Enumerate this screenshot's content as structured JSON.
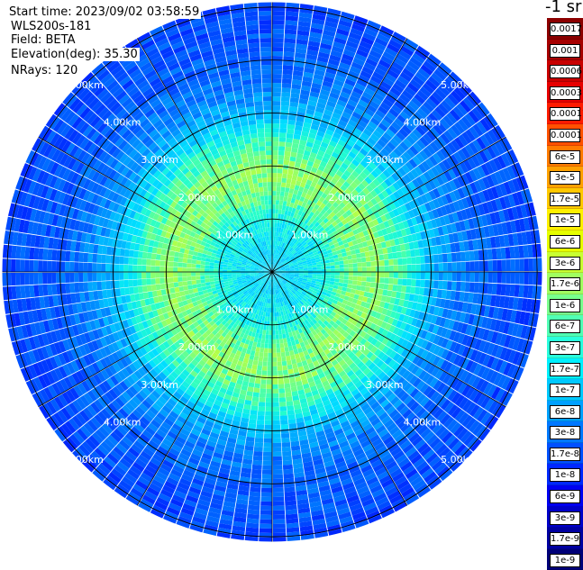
{
  "info": {
    "start_time": "Start time: 2023/09/02 03:58:59",
    "instrument": "WLS200s-181",
    "field": "Field: BETA",
    "elevation": "Elevation(deg): 35.30",
    "nrays": "NRays: 120"
  },
  "units": "-1 sr",
  "colorbar": {
    "labels": [
      "0.0017",
      "0.001",
      "0.0006",
      "0.0003",
      "0.00017",
      "0.0001",
      "6e-5",
      "3e-5",
      "1.7e-5",
      "1e-5",
      "6e-6",
      "3e-6",
      "1.7e-6",
      "1e-6",
      "6e-7",
      "3e-7",
      "1.7e-7",
      "1e-7",
      "6e-8",
      "3e-8",
      "1.7e-8",
      "1e-8",
      "6e-9",
      "3e-9",
      "1.7e-9",
      "1e-9"
    ],
    "colors": [
      "#8b0000",
      "#a50000",
      "#c80000",
      "#e60000",
      "#ff1a00",
      "#ff5000",
      "#ff7a00",
      "#ffa000",
      "#ffc800",
      "#fff000",
      "#e6ff00",
      "#c8ff32",
      "#a0ff60",
      "#78ff8c",
      "#50ffb4",
      "#28ffdc",
      "#00f0ff",
      "#00c8ff",
      "#00a0ff",
      "#0078ff",
      "#0050ff",
      "#0028ff",
      "#0000f0",
      "#0000c8",
      "#0000a0",
      "#000078"
    ]
  },
  "chart_data": {
    "type": "heatmap",
    "projection": "polar PPI",
    "field": "BETA",
    "rays": 120,
    "elevation_deg": 35.3,
    "range_rings_km": [
      1.0,
      2.0,
      3.0,
      4.0,
      5.0
    ],
    "ring_labels": [
      "1.00km",
      "2.00km",
      "3.00km",
      "4.00km",
      "5.00km"
    ],
    "radial_lines_deg": [
      0,
      30,
      60,
      90,
      120,
      150,
      180,
      210,
      240,
      270,
      300,
      330
    ],
    "max_range_km": 5.1,
    "radial_profile_log10": [
      {
        "range_km": 0.0,
        "value": -7.3
      },
      {
        "range_km": 0.5,
        "value": -7.2
      },
      {
        "range_km": 1.0,
        "value": -7.0
      },
      {
        "range_km": 1.5,
        "value": -6.5
      },
      {
        "range_km": 2.0,
        "value": -6.4
      },
      {
        "range_km": 2.5,
        "value": -6.8
      },
      {
        "range_km": 3.0,
        "value": -7.5
      },
      {
        "range_km": 3.5,
        "value": -7.9
      },
      {
        "range_km": 4.0,
        "value": -8.1
      },
      {
        "range_km": 4.5,
        "value": -8.2
      },
      {
        "range_km": 5.1,
        "value": -8.3
      }
    ]
  }
}
